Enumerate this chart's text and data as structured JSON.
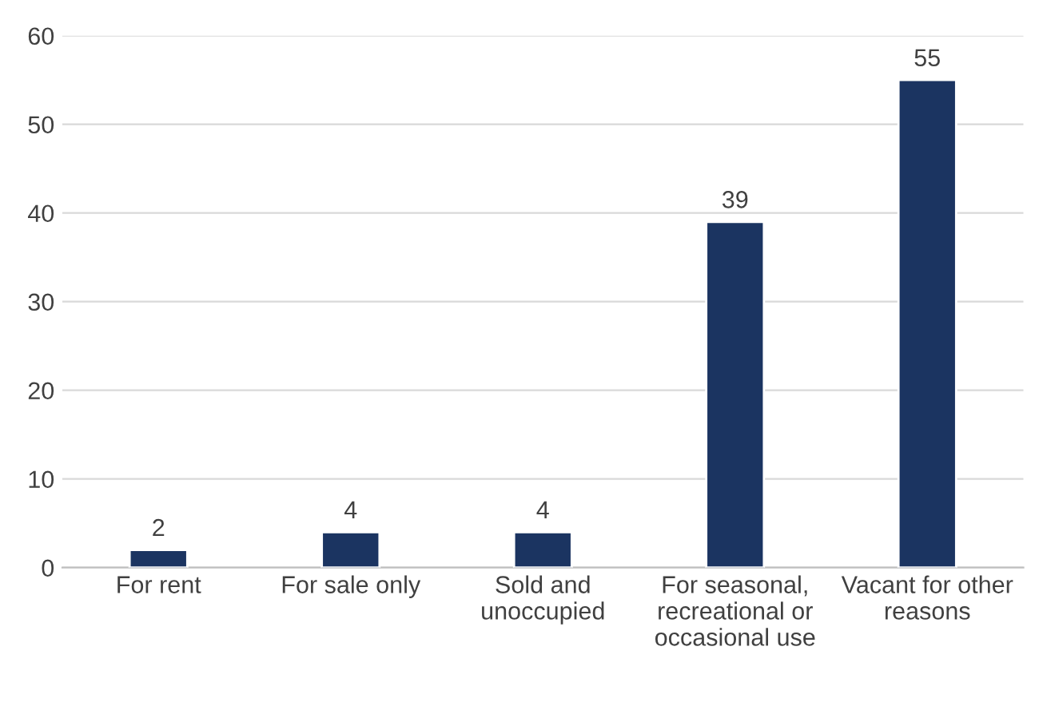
{
  "chart_data": {
    "type": "bar",
    "categories": [
      "For rent",
      "For sale only",
      "Sold and\nunoccupied",
      "For seasonal,\nrecreational or\noccasional use",
      "Vacant for other\nreasons"
    ],
    "values": [
      2,
      4,
      4,
      39,
      55
    ],
    "color": "#1b3461",
    "ylim": [
      0,
      60
    ],
    "yticks": [
      0,
      10,
      20,
      30,
      40,
      50,
      60
    ],
    "grid": "y",
    "data_labels": true
  }
}
